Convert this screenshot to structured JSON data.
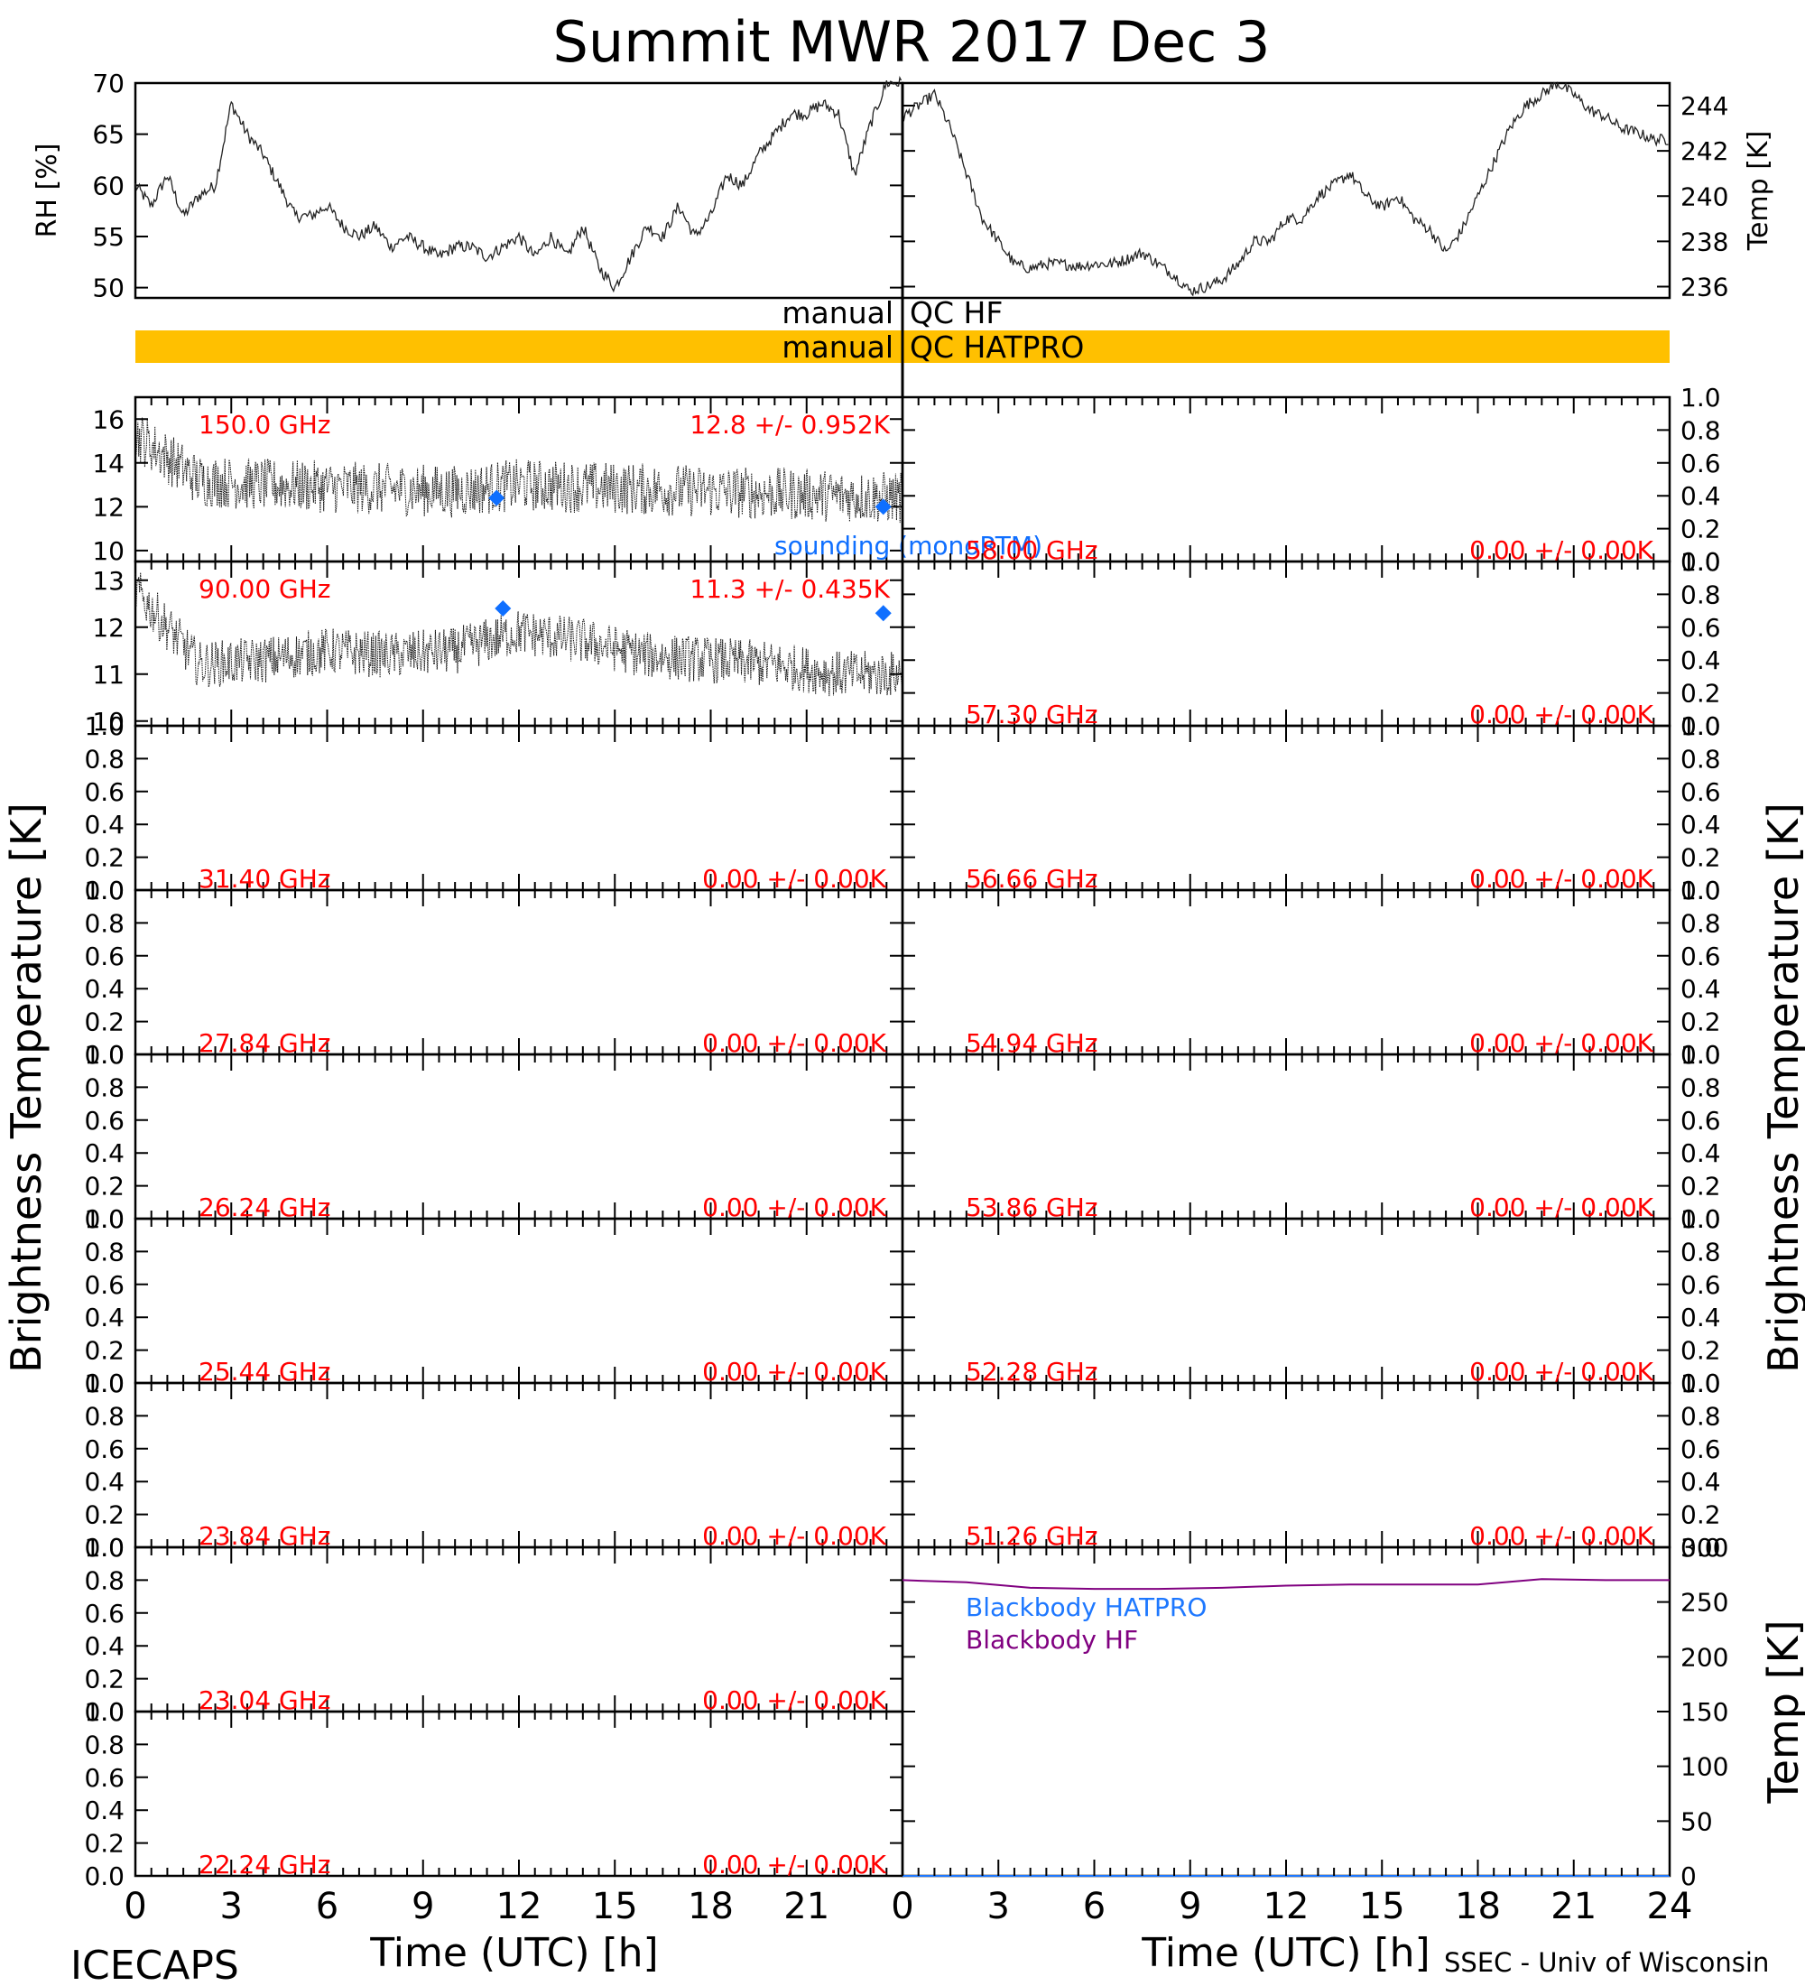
{
  "title": "Summit MWR 2017 Dec  3",
  "footer": {
    "left": "ICECAPS",
    "right": "SSEC - Univ of Wisconsin"
  },
  "xaxis": {
    "label": "Time (UTC) [h]",
    "ticks": [
      "0",
      "3",
      "6",
      "9",
      "12",
      "15",
      "18",
      "21",
      "24"
    ]
  },
  "left_ylabel": "Brightness Temperature [K]",
  "right_ylabel": "Brightness Temperature [K]",
  "colors": {
    "label_red": "#ff0000",
    "sounding_blue": "#0f6fff",
    "qc_gold": "#ffc000",
    "bb_purple": "#800080",
    "bb_blue": "#1e78ff"
  },
  "chart_data": [
    {
      "type": "line",
      "name": "rh",
      "ylabel": "RH [%]",
      "ylim": [
        49,
        70
      ],
      "yticks": [
        "50",
        "55",
        "60",
        "65",
        "70"
      ],
      "ytick_values": [
        50,
        55,
        60,
        65,
        70
      ],
      "x": [
        0,
        0.5,
        1,
        1.5,
        2,
        2.5,
        3,
        3.5,
        4,
        4.5,
        5,
        5.5,
        6,
        6.5,
        7,
        7.5,
        8,
        8.5,
        9,
        9.5,
        10,
        10.5,
        11,
        11.5,
        12,
        12.5,
        13,
        13.5,
        14,
        14.5,
        15,
        15.5,
        16,
        16.5,
        17,
        17.5,
        18,
        18.5,
        19,
        19.5,
        20,
        20.5,
        21,
        21.5,
        22,
        22.5,
        23,
        23.5
      ],
      "y": [
        60,
        58,
        61,
        57,
        59,
        60,
        68,
        65,
        63,
        60,
        57,
        57,
        58,
        56,
        55,
        56,
        54,
        55,
        54,
        53,
        54,
        54,
        53,
        54,
        55,
        53,
        55,
        53,
        56,
        52,
        50,
        53,
        56,
        55,
        58,
        55,
        57,
        61,
        60,
        63,
        65,
        67,
        67,
        68,
        67,
        61,
        66,
        70
      ]
    },
    {
      "type": "line",
      "name": "temp",
      "ylabel": "Temp [K]",
      "ylim": [
        235.5,
        245
      ],
      "yticks": [
        "236",
        "238",
        "240",
        "242",
        "244"
      ],
      "ytick_values": [
        236,
        238,
        240,
        242,
        244
      ],
      "x": [
        0,
        0.5,
        1,
        1.5,
        2,
        2.5,
        3,
        3.5,
        4,
        4.5,
        5,
        5.5,
        6,
        6.5,
        7,
        7.5,
        8,
        8.5,
        9,
        9.5,
        10,
        10.5,
        11,
        11.5,
        12,
        12.5,
        13,
        13.5,
        14,
        14.5,
        15,
        15.5,
        16,
        16.5,
        17,
        17.5,
        18,
        18.5,
        19,
        19.5,
        20,
        20.5,
        21,
        21.5,
        22,
        22.5,
        23,
        23.5
      ],
      "y": [
        243.5,
        244,
        244.5,
        243,
        241,
        239,
        238,
        237,
        236.8,
        237,
        237,
        236.9,
        237,
        237,
        237.2,
        237.5,
        237,
        236.5,
        235.8,
        236,
        236.3,
        237,
        238,
        238,
        239,
        239,
        240,
        240.5,
        241,
        240,
        239.5,
        240,
        239,
        238.5,
        237.5,
        238.5,
        240,
        241.5,
        243,
        244,
        244.5,
        245,
        244.5,
        243.8,
        243.5,
        243,
        242.8,
        242.5
      ]
    }
  ],
  "qc": [
    {
      "label": "manual",
      "right": "QC HF",
      "filled": false
    },
    {
      "label": "manual",
      "right": "QC HATPRO",
      "filled": true
    }
  ],
  "panels": [
    {
      "id": "L1",
      "col": "left",
      "row": 0,
      "freq": "150.0 GHz",
      "stat": "12.8 +/- 0.952K",
      "ylim": [
        9.5,
        17
      ],
      "yticks": [
        "10",
        "12",
        "14",
        "16"
      ],
      "ytick_values": [
        10,
        12,
        14,
        16
      ],
      "series": {
        "type": "noisy",
        "base": [
          15.3,
          13.2,
          13.0,
          12.9,
          12.8,
          12.7,
          13.0,
          12.9,
          12.8,
          12.7,
          12.6,
          12.5,
          12.4
        ],
        "noise": 1.2
      },
      "sounding": [
        {
          "x": 11.3,
          "y": 12.4
        },
        {
          "x": 23.4,
          "y": 12.0
        }
      ],
      "sounding_label": "sounding (monoRTM)"
    },
    {
      "id": "L2",
      "col": "left",
      "row": 1,
      "freq": "90.00 GHz",
      "stat": "11.3 +/- 0.435K",
      "ylim": [
        9.9,
        13.4
      ],
      "yticks": [
        "10",
        "11",
        "12",
        "13"
      ],
      "ytick_values": [
        10,
        11,
        12,
        13
      ],
      "series": {
        "type": "noisy",
        "base": [
          12.8,
          11.2,
          11.3,
          11.5,
          11.4,
          11.5,
          11.9,
          11.7,
          11.4,
          11.3,
          11.2,
          11.0,
          11.0
        ],
        "noise": 0.5
      },
      "sounding": [
        {
          "x": 11.5,
          "y": 12.4
        },
        {
          "x": 23.4,
          "y": 12.3
        }
      ]
    },
    {
      "id": "L3",
      "col": "left",
      "row": 2,
      "freq": "31.40 GHz",
      "stat": "0.00 +/- 0.00K",
      "ylim": [
        0,
        1
      ],
      "yticks": [
        "0.0",
        "0.2",
        "0.4",
        "0.6",
        "0.8",
        "1.0"
      ],
      "ytick_values": [
        0,
        0.2,
        0.4,
        0.6,
        0.8,
        1.0
      ]
    },
    {
      "id": "L4",
      "col": "left",
      "row": 3,
      "freq": "27.84 GHz",
      "stat": "0.00 +/- 0.00K",
      "ylim": [
        0,
        1
      ],
      "yticks": [
        "0.0",
        "0.2",
        "0.4",
        "0.6",
        "0.8",
        "1.0"
      ],
      "ytick_values": [
        0,
        0.2,
        0.4,
        0.6,
        0.8,
        1.0
      ]
    },
    {
      "id": "L5",
      "col": "left",
      "row": 4,
      "freq": "26.24 GHz",
      "stat": "0.00 +/- 0.00K",
      "ylim": [
        0,
        1
      ],
      "yticks": [
        "0.0",
        "0.2",
        "0.4",
        "0.6",
        "0.8",
        "1.0"
      ],
      "ytick_values": [
        0,
        0.2,
        0.4,
        0.6,
        0.8,
        1.0
      ]
    },
    {
      "id": "L6",
      "col": "left",
      "row": 5,
      "freq": "25.44 GHz",
      "stat": "0.00 +/- 0.00K",
      "ylim": [
        0,
        1
      ],
      "yticks": [
        "0.0",
        "0.2",
        "0.4",
        "0.6",
        "0.8",
        "1.0"
      ],
      "ytick_values": [
        0,
        0.2,
        0.4,
        0.6,
        0.8,
        1.0
      ]
    },
    {
      "id": "L7",
      "col": "left",
      "row": 6,
      "freq": "23.84 GHz",
      "stat": "0.00 +/- 0.00K",
      "ylim": [
        0,
        1
      ],
      "yticks": [
        "0.0",
        "0.2",
        "0.4",
        "0.6",
        "0.8",
        "1.0"
      ],
      "ytick_values": [
        0,
        0.2,
        0.4,
        0.6,
        0.8,
        1.0
      ]
    },
    {
      "id": "L8",
      "col": "left",
      "row": 7,
      "freq": "23.04 GHz",
      "stat": "0.00 +/- 0.00K",
      "ylim": [
        0,
        1
      ],
      "yticks": [
        "0.0",
        "0.2",
        "0.4",
        "0.6",
        "0.8",
        "1.0"
      ],
      "ytick_values": [
        0,
        0.2,
        0.4,
        0.6,
        0.8,
        1.0
      ]
    },
    {
      "id": "L9",
      "col": "left",
      "row": 8,
      "freq": "22.24 GHz",
      "stat": "0.00 +/- 0.00K",
      "ylim": [
        0,
        1
      ],
      "yticks": [
        "0.0",
        "0.2",
        "0.4",
        "0.6",
        "0.8",
        "1.0"
      ],
      "ytick_values": [
        0,
        0.2,
        0.4,
        0.6,
        0.8,
        1.0
      ]
    },
    {
      "id": "R1",
      "col": "right",
      "row": 0,
      "freq": "58.00 GHz",
      "stat": "0.00 +/- 0.00K",
      "ylim": [
        0,
        1
      ],
      "yticks": [
        "0.0",
        "0.2",
        "0.4",
        "0.6",
        "0.8",
        "1.0"
      ],
      "ytick_values": [
        0,
        0.2,
        0.4,
        0.6,
        0.8,
        1.0
      ]
    },
    {
      "id": "R2",
      "col": "right",
      "row": 1,
      "freq": "57.30 GHz",
      "stat": "0.00 +/- 0.00K",
      "ylim": [
        0,
        1
      ],
      "yticks": [
        "0.0",
        "0.2",
        "0.4",
        "0.6",
        "0.8",
        "1.0"
      ],
      "ytick_values": [
        0,
        0.2,
        0.4,
        0.6,
        0.8,
        1.0
      ]
    },
    {
      "id": "R3",
      "col": "right",
      "row": 2,
      "freq": "56.66 GHz",
      "stat": "0.00 +/- 0.00K",
      "ylim": [
        0,
        1
      ],
      "yticks": [
        "0.0",
        "0.2",
        "0.4",
        "0.6",
        "0.8",
        "1.0"
      ],
      "ytick_values": [
        0,
        0.2,
        0.4,
        0.6,
        0.8,
        1.0
      ]
    },
    {
      "id": "R4",
      "col": "right",
      "row": 3,
      "freq": "54.94 GHz",
      "stat": "0.00 +/- 0.00K",
      "ylim": [
        0,
        1
      ],
      "yticks": [
        "0.0",
        "0.2",
        "0.4",
        "0.6",
        "0.8",
        "1.0"
      ],
      "ytick_values": [
        0,
        0.2,
        0.4,
        0.6,
        0.8,
        1.0
      ]
    },
    {
      "id": "R5",
      "col": "right",
      "row": 4,
      "freq": "53.86 GHz",
      "stat": "0.00 +/- 0.00K",
      "ylim": [
        0,
        1
      ],
      "yticks": [
        "0.0",
        "0.2",
        "0.4",
        "0.6",
        "0.8",
        "1.0"
      ],
      "ytick_values": [
        0,
        0.2,
        0.4,
        0.6,
        0.8,
        1.0
      ]
    },
    {
      "id": "R6",
      "col": "right",
      "row": 5,
      "freq": "52.28 GHz",
      "stat": "0.00 +/- 0.00K",
      "ylim": [
        0,
        1
      ],
      "yticks": [
        "0.0",
        "0.2",
        "0.4",
        "0.6",
        "0.8",
        "1.0"
      ],
      "ytick_values": [
        0,
        0.2,
        0.4,
        0.6,
        0.8,
        1.0
      ]
    },
    {
      "id": "R7",
      "col": "right",
      "row": 6,
      "freq": "51.26 GHz",
      "stat": "0.00 +/- 0.00K",
      "ylim": [
        0,
        1
      ],
      "yticks": [
        "0.0",
        "0.2",
        "0.4",
        "0.6",
        "0.8",
        "1.0"
      ],
      "ytick_values": [
        0,
        0.2,
        0.4,
        0.6,
        0.8,
        1.0
      ]
    }
  ],
  "blackbody": {
    "ylabel": "Temp [K]",
    "ylim": [
      0,
      300
    ],
    "yticks": [
      "0",
      "50",
      "100",
      "150",
      "200",
      "250",
      "300"
    ],
    "ytick_values": [
      0,
      50,
      100,
      150,
      200,
      250,
      300
    ],
    "legend": [
      {
        "label": "Blackbody HATPRO",
        "color": "#1e78ff"
      },
      {
        "label": "Blackbody HF",
        "color": "#800080"
      }
    ],
    "x": [
      0,
      2,
      4,
      6,
      8,
      10,
      12,
      14,
      16,
      18,
      20,
      22,
      24
    ],
    "hf": [
      270,
      268,
      263,
      262,
      262,
      263,
      265,
      266,
      266,
      266,
      271,
      270,
      270
    ],
    "hatpro": [
      0,
      0,
      0,
      0,
      0,
      0,
      0,
      0,
      0,
      0,
      0,
      0,
      0
    ]
  }
}
